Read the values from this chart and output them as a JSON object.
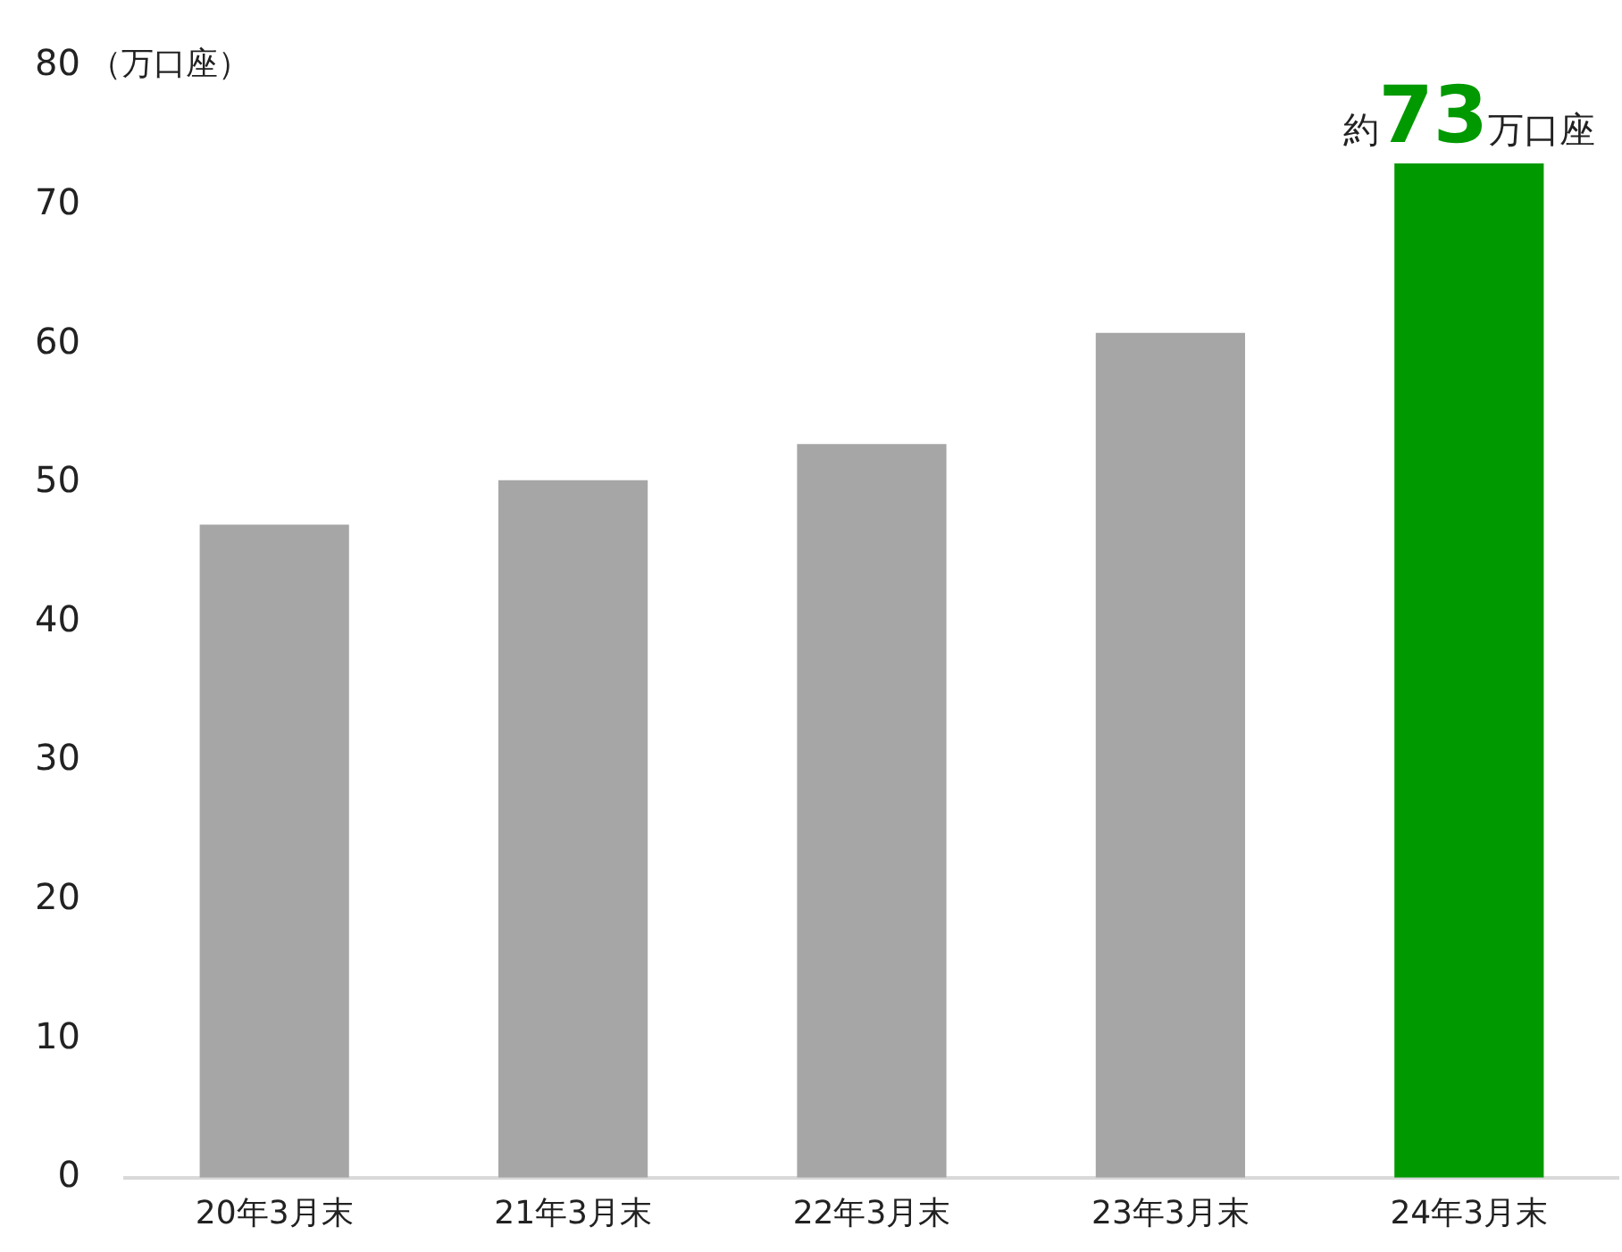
{
  "chart_data": {
    "type": "bar",
    "ylabel": "（万口座）",
    "categories": [
      "20年3月末",
      "21年3月末",
      "22年3月末",
      "23年3月末",
      "24年3月末"
    ],
    "values": [
      47,
      50.2,
      52.8,
      60.8,
      73
    ],
    "colors": [
      "#a6a6a6",
      "#a6a6a6",
      "#a6a6a6",
      "#a6a6a6",
      "#009900"
    ],
    "ylim": [
      0,
      80
    ],
    "yticks": [
      0,
      10,
      20,
      30,
      40,
      50,
      60,
      70,
      80
    ],
    "grid": false,
    "legend": false,
    "annotations": [
      {
        "text": "約73万口座",
        "x": "24年3月末",
        "y": 73
      }
    ]
  }
}
